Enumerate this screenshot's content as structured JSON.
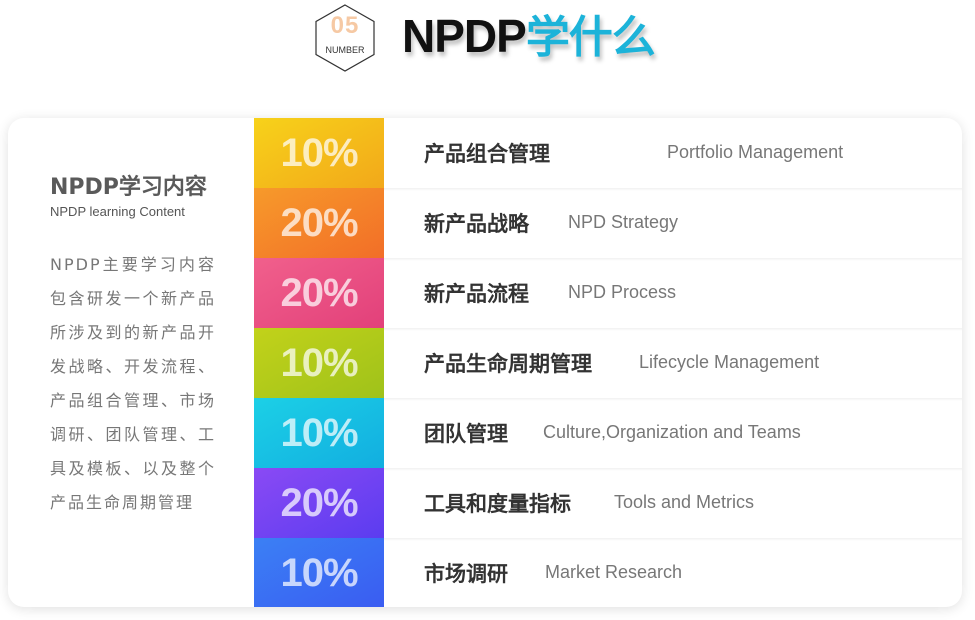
{
  "header": {
    "badge_number": "05",
    "badge_label": "NUMBER",
    "title_en": "NPDP",
    "title_cn": "学什么"
  },
  "side": {
    "title": "NPDP学习内容",
    "subtitle": "NPDP learning Content",
    "description": "NPDP主要学习内容包含研发一个新产品所涉及到的新产品开发战略、开发流程、产品组合管理、市场调研、团队管理、工具及模板、以及整个产品生命周期管理"
  },
  "rows": [
    {
      "percent": "10%",
      "cn": "产品组合管理",
      "en": "Portfolio Management",
      "colors": [
        "#f7d21a",
        "#f2a81a"
      ]
    },
    {
      "percent": "20%",
      "cn": "新产品战略",
      "en": "NPD Strategy",
      "colors": [
        "#f79a2a",
        "#f26e28"
      ]
    },
    {
      "percent": "20%",
      "cn": "新产品流程",
      "en": "NPD Process",
      "colors": [
        "#f1608c",
        "#e2407a"
      ]
    },
    {
      "percent": "10%",
      "cn": "产品生命周期管理",
      "en": "Lifecycle Management",
      "colors": [
        "#c2d21a",
        "#9fc21a"
      ]
    },
    {
      "percent": "10%",
      "cn": "团队管理",
      "en": "Culture,Organization and Teams",
      "colors": [
        "#1cd0e6",
        "#12aee0"
      ]
    },
    {
      "percent": "20%",
      "cn": "工具和度量指标",
      "en": "Tools and Metrics",
      "colors": [
        "#8a4af4",
        "#5b3cf0"
      ]
    },
    {
      "percent": "10%",
      "cn": "市场调研",
      "en": "Market Research",
      "colors": [
        "#3b80f4",
        "#3a5cf2"
      ]
    }
  ]
}
